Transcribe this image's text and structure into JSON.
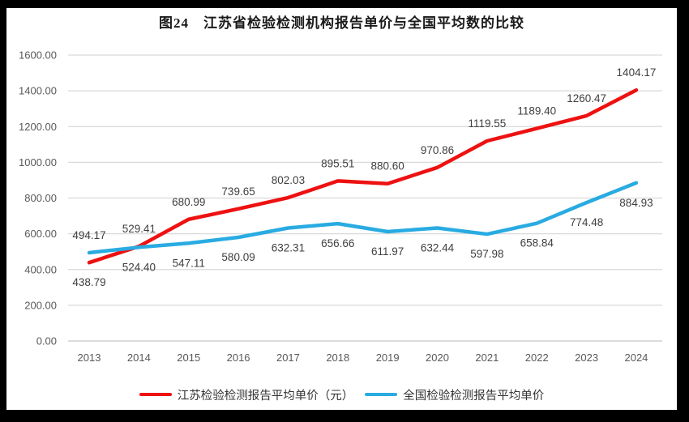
{
  "chart_data": {
    "type": "line",
    "title": "图24　江苏省检验检测机构报告单价与全国平均数的比较",
    "x": [
      "2013",
      "2014",
      "2015",
      "2016",
      "2017",
      "2018",
      "2019",
      "2020",
      "2021",
      "2022",
      "2023",
      "2024"
    ],
    "series": [
      {
        "name": "江苏检验检测报告平均单价（元）",
        "color": "#ee1111",
        "values": [
          438.79,
          529.41,
          680.99,
          739.65,
          802.03,
          895.51,
          880.6,
          970.86,
          1119.55,
          1189.4,
          1260.47,
          1404.17
        ],
        "label_position": [
          "below",
          "above",
          "above",
          "above",
          "above",
          "above",
          "above",
          "above",
          "above",
          "above",
          "above",
          "above"
        ]
      },
      {
        "name": "全国检验检测报告平均单价",
        "color": "#29abe2",
        "values": [
          494.17,
          524.4,
          547.11,
          580.09,
          632.31,
          656.66,
          611.97,
          632.44,
          597.98,
          658.84,
          774.48,
          884.93
        ],
        "label_position": [
          "above",
          "below",
          "below",
          "below",
          "below",
          "below",
          "below",
          "below",
          "below",
          "below",
          "below",
          "below"
        ]
      }
    ],
    "ylim": [
      0,
      1600
    ],
    "yticks": [
      0,
      200,
      400,
      600,
      800,
      1000,
      1200,
      1400,
      1600
    ],
    "ytick_decimals": 2,
    "xlabel": "",
    "ylabel": "",
    "grid": "horizontal",
    "legend_position": "bottom",
    "data_labels": true,
    "colors": {
      "grid": "#d9d9d9",
      "baseline": "#c6c6c6",
      "axis_text": "#595959",
      "data_label_text": "#3f3f3f",
      "background": "#ffffff",
      "frame": "#000000"
    }
  }
}
